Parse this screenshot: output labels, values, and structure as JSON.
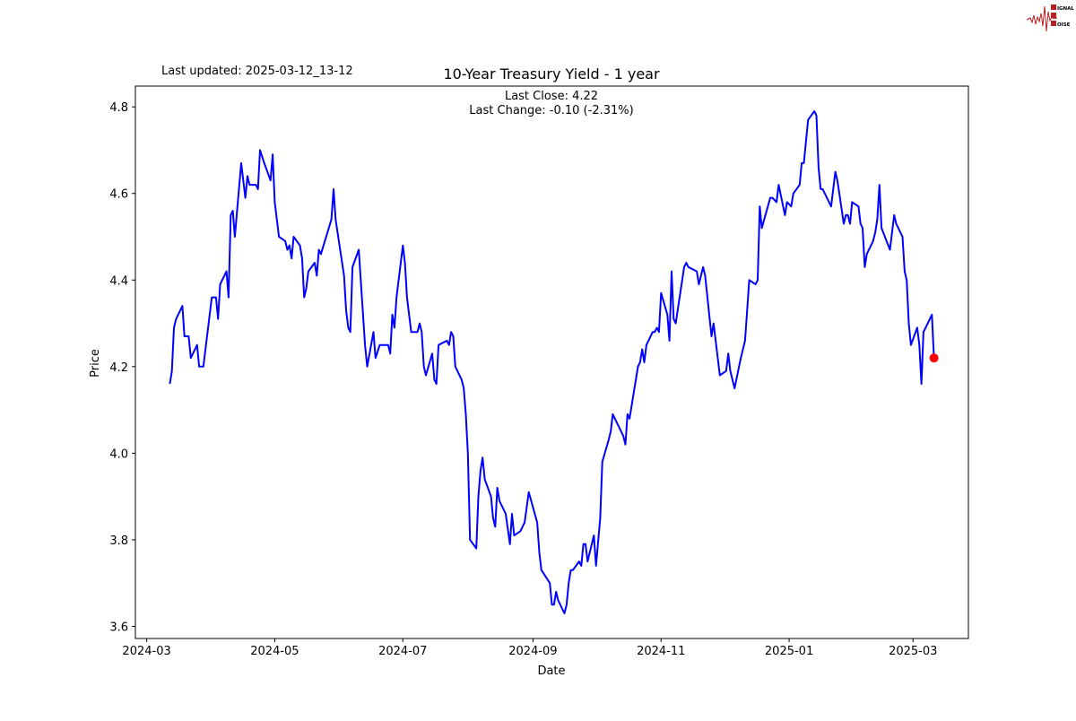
{
  "header": {
    "last_updated": "Last updated: 2025-03-12_13-12"
  },
  "logo": {
    "text": "SIGNAL 2 NOISE",
    "color": "#b22222"
  },
  "chart_data": {
    "type": "line",
    "title": "10-Year Treasury Yield - 1 year",
    "annotation": [
      "Last Close: 4.22",
      "Last Change: -0.10 (-2.31%)"
    ],
    "xlabel": "Date",
    "ylabel": "Price",
    "ylim": [
      3.572,
      4.848
    ],
    "yticks": [
      3.6,
      3.8,
      4.0,
      4.2,
      4.4,
      4.6,
      4.8
    ],
    "xticks": [
      "2024-03",
      "2024-05",
      "2024-07",
      "2024-09",
      "2024-11",
      "2025-01",
      "2025-03"
    ],
    "grid": false,
    "line_color": "#0000ff",
    "last_point_color": "#ff0000",
    "points": [
      [
        "2024-03-12",
        4.16
      ],
      [
        "2024-03-13",
        4.19
      ],
      [
        "2024-03-14",
        4.29
      ],
      [
        "2024-03-15",
        4.31
      ],
      [
        "2024-03-18",
        4.34
      ],
      [
        "2024-03-19",
        4.27
      ],
      [
        "2024-03-21",
        4.27
      ],
      [
        "2024-03-22",
        4.22
      ],
      [
        "2024-03-25",
        4.25
      ],
      [
        "2024-03-26",
        4.2
      ],
      [
        "2024-03-28",
        4.2
      ],
      [
        "2024-04-01",
        4.36
      ],
      [
        "2024-04-03",
        4.36
      ],
      [
        "2024-04-04",
        4.31
      ],
      [
        "2024-04-05",
        4.39
      ],
      [
        "2024-04-08",
        4.42
      ],
      [
        "2024-04-09",
        4.36
      ],
      [
        "2024-04-10",
        4.55
      ],
      [
        "2024-04-11",
        4.56
      ],
      [
        "2024-04-12",
        4.5
      ],
      [
        "2024-04-15",
        4.67
      ],
      [
        "2024-04-17",
        4.59
      ],
      [
        "2024-04-18",
        4.64
      ],
      [
        "2024-04-19",
        4.62
      ],
      [
        "2024-04-22",
        4.62
      ],
      [
        "2024-04-23",
        4.61
      ],
      [
        "2024-04-24",
        4.7
      ],
      [
        "2024-04-26",
        4.67
      ],
      [
        "2024-04-29",
        4.63
      ],
      [
        "2024-04-30",
        4.69
      ],
      [
        "2024-05-01",
        4.58
      ],
      [
        "2024-05-03",
        4.5
      ],
      [
        "2024-05-06",
        4.49
      ],
      [
        "2024-05-07",
        4.47
      ],
      [
        "2024-05-08",
        4.48
      ],
      [
        "2024-05-09",
        4.45
      ],
      [
        "2024-05-10",
        4.5
      ],
      [
        "2024-05-13",
        4.48
      ],
      [
        "2024-05-14",
        4.45
      ],
      [
        "2024-05-15",
        4.36
      ],
      [
        "2024-05-16",
        4.38
      ],
      [
        "2024-05-17",
        4.42
      ],
      [
        "2024-05-20",
        4.44
      ],
      [
        "2024-05-21",
        4.41
      ],
      [
        "2024-05-22",
        4.47
      ],
      [
        "2024-05-23",
        4.46
      ],
      [
        "2024-05-28",
        4.54
      ],
      [
        "2024-05-29",
        4.61
      ],
      [
        "2024-05-30",
        4.54
      ],
      [
        "2024-06-03",
        4.41
      ],
      [
        "2024-06-04",
        4.33
      ],
      [
        "2024-06-05",
        4.29
      ],
      [
        "2024-06-06",
        4.28
      ],
      [
        "2024-06-07",
        4.43
      ],
      [
        "2024-06-10",
        4.47
      ],
      [
        "2024-06-13",
        4.25
      ],
      [
        "2024-06-14",
        4.2
      ],
      [
        "2024-06-17",
        4.28
      ],
      [
        "2024-06-18",
        4.22
      ],
      [
        "2024-06-20",
        4.25
      ],
      [
        "2024-06-24",
        4.25
      ],
      [
        "2024-06-25",
        4.23
      ],
      [
        "2024-06-26",
        4.32
      ],
      [
        "2024-06-27",
        4.29
      ],
      [
        "2024-06-28",
        4.36
      ],
      [
        "2024-07-01",
        4.48
      ],
      [
        "2024-07-02",
        4.44
      ],
      [
        "2024-07-03",
        4.36
      ],
      [
        "2024-07-05",
        4.28
      ],
      [
        "2024-07-08",
        4.28
      ],
      [
        "2024-07-09",
        4.3
      ],
      [
        "2024-07-10",
        4.28
      ],
      [
        "2024-07-11",
        4.2
      ],
      [
        "2024-07-12",
        4.18
      ],
      [
        "2024-07-15",
        4.23
      ],
      [
        "2024-07-16",
        4.17
      ],
      [
        "2024-07-17",
        4.16
      ],
      [
        "2024-07-18",
        4.25
      ],
      [
        "2024-07-22",
        4.26
      ],
      [
        "2024-07-23",
        4.25
      ],
      [
        "2024-07-24",
        4.28
      ],
      [
        "2024-07-25",
        4.27
      ],
      [
        "2024-07-26",
        4.2
      ],
      [
        "2024-07-29",
        4.17
      ],
      [
        "2024-07-30",
        4.15
      ],
      [
        "2024-07-31",
        4.09
      ],
      [
        "2024-08-01",
        4.0
      ],
      [
        "2024-08-02",
        3.8
      ],
      [
        "2024-08-05",
        3.78
      ],
      [
        "2024-08-06",
        3.9
      ],
      [
        "2024-08-07",
        3.96
      ],
      [
        "2024-08-08",
        3.99
      ],
      [
        "2024-08-09",
        3.94
      ],
      [
        "2024-08-12",
        3.9
      ],
      [
        "2024-08-13",
        3.85
      ],
      [
        "2024-08-14",
        3.83
      ],
      [
        "2024-08-15",
        3.92
      ],
      [
        "2024-08-16",
        3.89
      ],
      [
        "2024-08-19",
        3.86
      ],
      [
        "2024-08-21",
        3.79
      ],
      [
        "2024-08-22",
        3.86
      ],
      [
        "2024-08-23",
        3.81
      ],
      [
        "2024-08-26",
        3.82
      ],
      [
        "2024-08-28",
        3.84
      ],
      [
        "2024-08-30",
        3.91
      ],
      [
        "2024-09-03",
        3.84
      ],
      [
        "2024-09-04",
        3.77
      ],
      [
        "2024-09-05",
        3.73
      ],
      [
        "2024-09-09",
        3.7
      ],
      [
        "2024-09-10",
        3.65
      ],
      [
        "2024-09-11",
        3.65
      ],
      [
        "2024-09-12",
        3.68
      ],
      [
        "2024-09-13",
        3.66
      ],
      [
        "2024-09-16",
        3.63
      ],
      [
        "2024-09-17",
        3.65
      ],
      [
        "2024-09-18",
        3.7
      ],
      [
        "2024-09-19",
        3.73
      ],
      [
        "2024-09-20",
        3.73
      ],
      [
        "2024-09-23",
        3.75
      ],
      [
        "2024-09-24",
        3.74
      ],
      [
        "2024-09-25",
        3.79
      ],
      [
        "2024-09-26",
        3.79
      ],
      [
        "2024-09-27",
        3.75
      ],
      [
        "2024-09-30",
        3.81
      ],
      [
        "2024-10-01",
        3.74
      ],
      [
        "2024-10-03",
        3.85
      ],
      [
        "2024-10-04",
        3.98
      ],
      [
        "2024-10-07",
        4.03
      ],
      [
        "2024-10-08",
        4.05
      ],
      [
        "2024-10-09",
        4.09
      ],
      [
        "2024-10-14",
        4.04
      ],
      [
        "2024-10-15",
        4.02
      ],
      [
        "2024-10-16",
        4.09
      ],
      [
        "2024-10-17",
        4.08
      ],
      [
        "2024-10-21",
        4.2
      ],
      [
        "2024-10-22",
        4.21
      ],
      [
        "2024-10-23",
        4.24
      ],
      [
        "2024-10-24",
        4.21
      ],
      [
        "2024-10-25",
        4.25
      ],
      [
        "2024-10-28",
        4.28
      ],
      [
        "2024-10-29",
        4.28
      ],
      [
        "2024-10-30",
        4.29
      ],
      [
        "2024-10-31",
        4.28
      ],
      [
        "2024-11-01",
        4.37
      ],
      [
        "2024-11-04",
        4.32
      ],
      [
        "2024-11-05",
        4.26
      ],
      [
        "2024-11-06",
        4.42
      ],
      [
        "2024-11-07",
        4.31
      ],
      [
        "2024-11-08",
        4.3
      ],
      [
        "2024-11-12",
        4.43
      ],
      [
        "2024-11-13",
        4.44
      ],
      [
        "2024-11-14",
        4.43
      ],
      [
        "2024-11-18",
        4.42
      ],
      [
        "2024-11-19",
        4.39
      ],
      [
        "2024-11-21",
        4.43
      ],
      [
        "2024-11-22",
        4.41
      ],
      [
        "2024-11-25",
        4.27
      ],
      [
        "2024-11-26",
        4.3
      ],
      [
        "2024-11-29",
        4.18
      ],
      [
        "2024-12-02",
        4.19
      ],
      [
        "2024-12-03",
        4.23
      ],
      [
        "2024-12-04",
        4.19
      ],
      [
        "2024-12-06",
        4.15
      ],
      [
        "2024-12-09",
        4.22
      ],
      [
        "2024-12-11",
        4.26
      ],
      [
        "2024-12-13",
        4.4
      ],
      [
        "2024-12-16",
        4.39
      ],
      [
        "2024-12-17",
        4.4
      ],
      [
        "2024-12-18",
        4.57
      ],
      [
        "2024-12-19",
        4.52
      ],
      [
        "2024-12-23",
        4.59
      ],
      [
        "2024-12-24",
        4.59
      ],
      [
        "2024-12-26",
        4.58
      ],
      [
        "2024-12-27",
        4.62
      ],
      [
        "2024-12-30",
        4.55
      ],
      [
        "2024-12-31",
        4.58
      ],
      [
        "2025-01-02",
        4.57
      ],
      [
        "2025-01-03",
        4.6
      ],
      [
        "2025-01-06",
        4.62
      ],
      [
        "2025-01-07",
        4.67
      ],
      [
        "2025-01-08",
        4.67
      ],
      [
        "2025-01-10",
        4.77
      ],
      [
        "2025-01-13",
        4.79
      ],
      [
        "2025-01-14",
        4.78
      ],
      [
        "2025-01-15",
        4.66
      ],
      [
        "2025-01-16",
        4.61
      ],
      [
        "2025-01-17",
        4.61
      ],
      [
        "2025-01-21",
        4.57
      ],
      [
        "2025-01-23",
        4.65
      ],
      [
        "2025-01-24",
        4.63
      ],
      [
        "2025-01-27",
        4.53
      ],
      [
        "2025-01-28",
        4.55
      ],
      [
        "2025-01-29",
        4.55
      ],
      [
        "2025-01-30",
        4.53
      ],
      [
        "2025-01-31",
        4.58
      ],
      [
        "2025-02-03",
        4.57
      ],
      [
        "2025-02-04",
        4.53
      ],
      [
        "2025-02-05",
        4.52
      ],
      [
        "2025-02-06",
        4.43
      ],
      [
        "2025-02-07",
        4.46
      ],
      [
        "2025-02-10",
        4.49
      ],
      [
        "2025-02-11",
        4.51
      ],
      [
        "2025-02-12",
        4.54
      ],
      [
        "2025-02-13",
        4.62
      ],
      [
        "2025-02-14",
        4.52
      ],
      [
        "2025-02-18",
        4.47
      ],
      [
        "2025-02-20",
        4.55
      ],
      [
        "2025-02-21",
        4.53
      ],
      [
        "2025-02-24",
        4.5
      ],
      [
        "2025-02-25",
        4.42
      ],
      [
        "2025-02-26",
        4.4
      ],
      [
        "2025-02-27",
        4.3
      ],
      [
        "2025-02-28",
        4.25
      ],
      [
        "2025-03-03",
        4.29
      ],
      [
        "2025-03-04",
        4.25
      ],
      [
        "2025-03-05",
        4.16
      ],
      [
        "2025-03-06",
        4.28
      ],
      [
        "2025-03-07",
        4.29
      ],
      [
        "2025-03-10",
        4.32
      ],
      [
        "2025-03-11",
        4.22
      ]
    ]
  }
}
